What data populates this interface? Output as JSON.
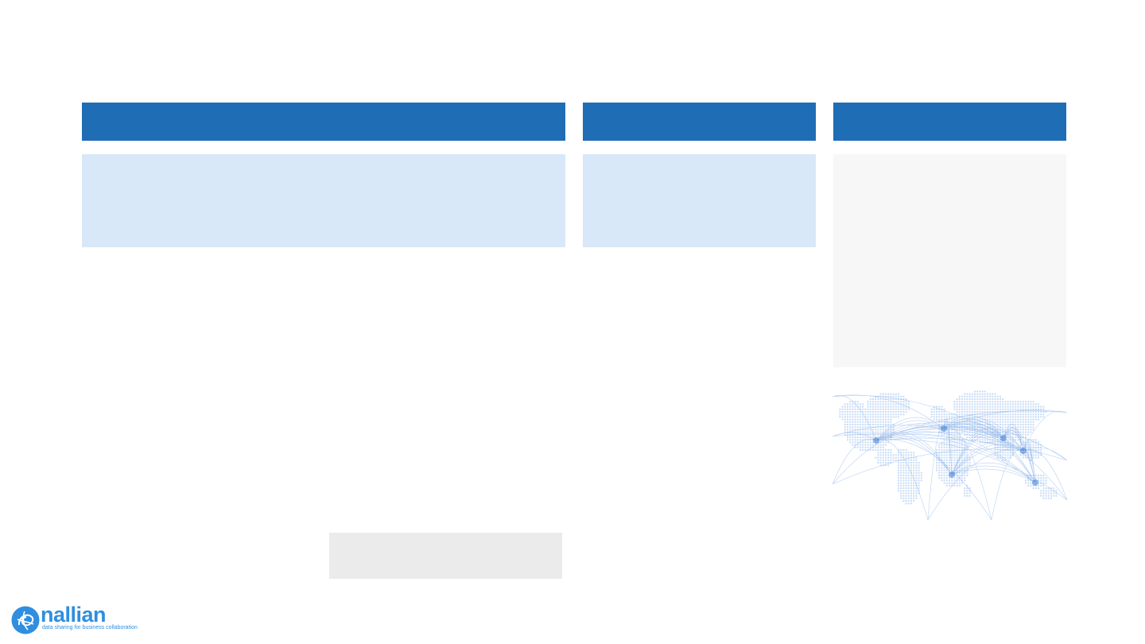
{
  "colors": {
    "header_blue": "#1e6db5",
    "panel_light_blue": "#d9e8f8",
    "panel_grey": "#f7f7f7",
    "placeholder_grey": "#ebebeb",
    "brand_blue": "#2f8ee0"
  },
  "columns": [
    {
      "header": "",
      "body": ""
    },
    {
      "header": "",
      "body": ""
    },
    {
      "header": "",
      "body": ""
    }
  ],
  "map": {
    "icon": "world-connections-map"
  },
  "placeholder": {
    "text": ""
  },
  "logo": {
    "icon": "nallian-logo-mark",
    "name": "nallian",
    "tagline": "data sharing for business collaboration"
  }
}
